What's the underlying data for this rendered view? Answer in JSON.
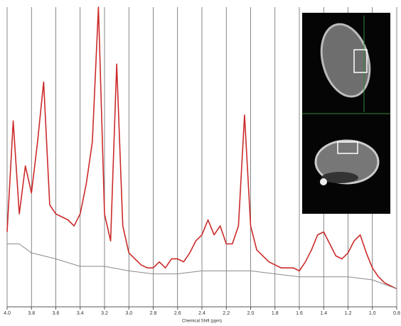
{
  "chart_data": {
    "type": "line",
    "x_label": "Chemical Shift (ppm)",
    "xlim": [
      4.0,
      0.8
    ],
    "ylim": [
      0,
      100
    ],
    "grid": true,
    "xticks": [
      {
        "value": 4.0,
        "label": "4.0"
      },
      3.8,
      3.6,
      3.4,
      3.2,
      {
        "value": 3.0,
        "label": "3.0"
      },
      2.8,
      2.6,
      2.4,
      2.2,
      {
        "value": 2.0,
        "label": "2.0"
      },
      1.8,
      1.6,
      1.4,
      1.2,
      {
        "value": 1.0,
        "label": "1.0"
      },
      0.8
    ],
    "series": [
      {
        "color": "#cc2a2a",
        "x": [
          4.0,
          3.95,
          3.9,
          3.85,
          3.8,
          3.75,
          3.7,
          3.65,
          3.6,
          3.55,
          3.5,
          3.45,
          3.4,
          3.35,
          3.3,
          3.25,
          3.2,
          3.15,
          3.1,
          3.05,
          3.0,
          2.95,
          2.9,
          2.85,
          2.8,
          2.75,
          2.7,
          2.65,
          2.6,
          2.55,
          2.5,
          2.45,
          2.4,
          2.35,
          2.3,
          2.25,
          2.2,
          2.15,
          2.1,
          2.05,
          2.0,
          1.95,
          1.9,
          1.85,
          1.8,
          1.75,
          1.7,
          1.65,
          1.6,
          1.55,
          1.5,
          1.45,
          1.4,
          1.35,
          1.3,
          1.25,
          1.2,
          1.15,
          1.1,
          1.05,
          1.0,
          0.95,
          0.9,
          0.85,
          0.8
        ],
        "values": [
          25,
          62,
          31,
          47,
          38,
          55,
          75,
          34,
          31,
          30,
          29,
          27,
          31,
          41,
          55,
          100,
          31,
          22,
          81,
          27,
          18,
          16,
          14,
          13,
          13,
          15,
          13,
          16,
          16,
          15,
          18,
          22,
          24,
          29,
          24,
          27,
          21,
          21,
          27,
          64,
          27,
          19,
          17,
          15,
          14,
          13,
          13,
          13,
          12,
          15,
          19,
          24,
          25,
          21,
          17,
          16,
          18,
          22,
          24,
          18,
          13,
          10,
          8,
          7,
          6
        ]
      },
      {
        "color": "#8a8a8a",
        "x": [
          4.0,
          3.9,
          3.8,
          3.6,
          3.4,
          3.2,
          3.0,
          2.8,
          2.6,
          2.4,
          2.2,
          2.0,
          1.8,
          1.6,
          1.4,
          1.2,
          1.0,
          0.8
        ],
        "values": [
          21,
          21,
          18,
          16,
          13.5,
          13.5,
          12,
          11,
          11,
          12,
          12,
          12,
          11,
          10,
          10,
          10,
          9,
          6
        ]
      }
    ]
  }
}
